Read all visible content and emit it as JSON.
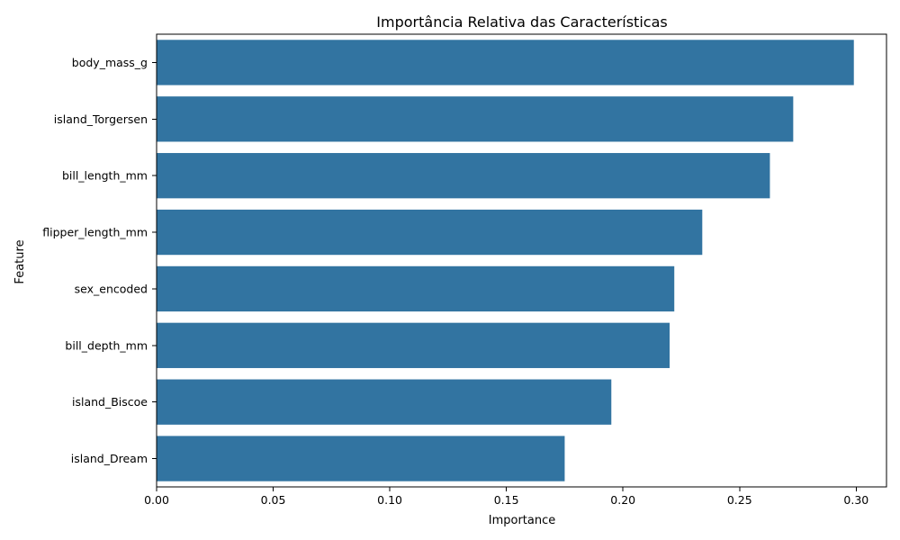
{
  "chart_data": {
    "type": "bar",
    "orientation": "horizontal",
    "title": "Importância Relativa das Características",
    "xlabel": "Importance",
    "ylabel": "Feature",
    "categories": [
      "body_mass_g",
      "island_Torgersen",
      "bill_length_mm",
      "flipper_length_mm",
      "sex_encoded",
      "bill_depth_mm",
      "island_Biscoe",
      "island_Dream"
    ],
    "values": [
      0.299,
      0.273,
      0.263,
      0.234,
      0.222,
      0.22,
      0.195,
      0.175
    ],
    "xlim": [
      0,
      0.313
    ],
    "xticks": [
      0.0,
      0.05,
      0.1,
      0.15,
      0.2,
      0.25,
      0.3
    ],
    "xtick_labels": [
      "0.00",
      "0.05",
      "0.10",
      "0.15",
      "0.20",
      "0.25",
      "0.30"
    ],
    "grid": false,
    "legend": "none",
    "bar_color": "#3274a1"
  }
}
